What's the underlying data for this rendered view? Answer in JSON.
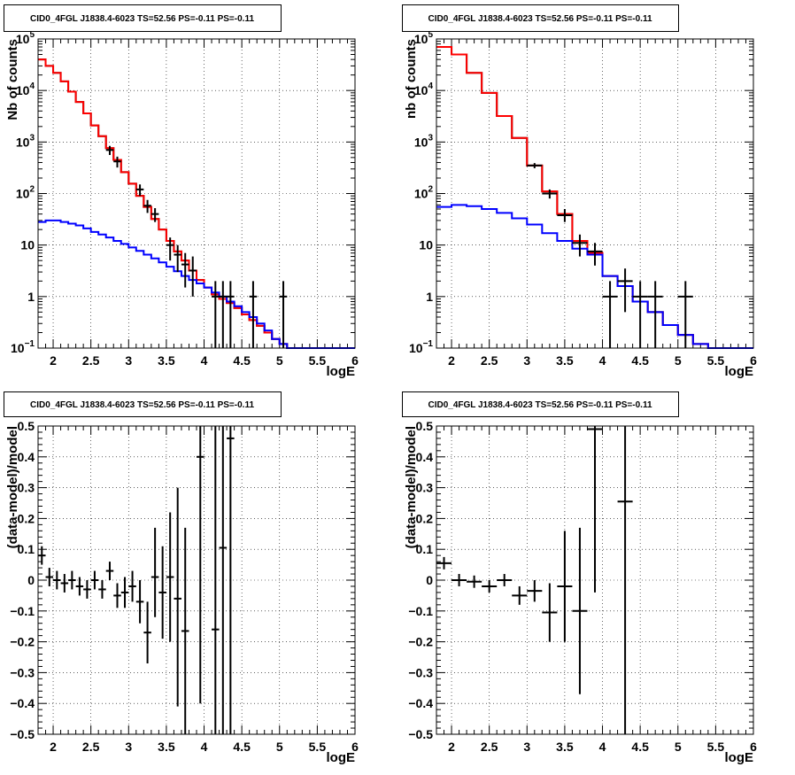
{
  "chart_data": [
    {
      "type": "histogram",
      "title": "CID0_4FGL J1838.4-6023 TS=52.56 PS=-0.11 PS=-0.11",
      "xlabel": "logE",
      "ylabel": "Nb of counts",
      "xlim": [
        1.8,
        6.0
      ],
      "ylim": [
        0.1,
        100000
      ],
      "ylog": true,
      "grid": true,
      "x_ticks": [
        2,
        2.5,
        3,
        3.5,
        4,
        4.5,
        5,
        5.5,
        6
      ],
      "y_ticks": [
        {
          "v": 0.1,
          "m": "10",
          "e": "−1"
        },
        {
          "v": 1,
          "m": "1",
          "e": ""
        },
        {
          "v": 10,
          "m": "10",
          "e": ""
        },
        {
          "v": 100,
          "m": "10",
          "e": "2"
        },
        {
          "v": 1000,
          "m": "10",
          "e": "3"
        },
        {
          "v": 10000,
          "m": "10",
          "e": "4"
        },
        {
          "v": 100000,
          "m": "10",
          "e": "5"
        }
      ],
      "bin_width": 0.1,
      "series": [
        {
          "color": "#000000",
          "kind": "step",
          "x": [
            1.8,
            1.9,
            2.0,
            2.1,
            2.2,
            2.3,
            2.4,
            2.5,
            2.6,
            2.7,
            2.8,
            2.9,
            3.0,
            3.1,
            3.2,
            3.3,
            3.4,
            3.5,
            3.6,
            3.7,
            3.8,
            3.9,
            4.0,
            4.1,
            4.2,
            4.3,
            4.4,
            4.5,
            4.6,
            4.7,
            4.8,
            4.9,
            5.0,
            5.1,
            5.2,
            5.3,
            5.4,
            5.5,
            5.6,
            5.7,
            5.8,
            5.9
          ],
          "y": [
            40000,
            30000,
            22000,
            15000,
            9500,
            6000,
            3600,
            2100,
            1300,
            760,
            450,
            260,
            155,
            90,
            55,
            32,
            20,
            12,
            7.5,
            5,
            3.2,
            2.1,
            1.5,
            1.1,
            0.9,
            0.75,
            0.6,
            0.45,
            0.35,
            0.27,
            0.2,
            0.15,
            0.12,
            0.1,
            0.1,
            0.1,
            0.1,
            0.1,
            0.1,
            0.1,
            0.1,
            0.1
          ]
        },
        {
          "color": "#ff0000",
          "kind": "step",
          "x": [
            1.8,
            1.9,
            2.0,
            2.1,
            2.2,
            2.3,
            2.4,
            2.5,
            2.6,
            2.7,
            2.8,
            2.9,
            3.0,
            3.1,
            3.2,
            3.3,
            3.4,
            3.5,
            3.6,
            3.7,
            3.8,
            3.9,
            4.0,
            4.1,
            4.2,
            4.3,
            4.4,
            4.5,
            4.6,
            4.7,
            4.8,
            4.9,
            5.0,
            5.1,
            5.2,
            5.3,
            5.4,
            5.5,
            5.6,
            5.7,
            5.8,
            5.9
          ],
          "y": [
            40000,
            30000,
            22000,
            15000,
            9500,
            6000,
            3600,
            2100,
            1300,
            760,
            450,
            260,
            155,
            90,
            55,
            32,
            20,
            12,
            7.5,
            5,
            3.2,
            2.1,
            1.5,
            1.1,
            0.9,
            0.75,
            0.6,
            0.45,
            0.35,
            0.27,
            0.2,
            0.15,
            0.12,
            0.1,
            0.1,
            0.1,
            0.1,
            0.1,
            0.1,
            0.1,
            0.1,
            0.1
          ]
        },
        {
          "color": "#0000ff",
          "kind": "step",
          "x": [
            1.8,
            1.9,
            2.0,
            2.1,
            2.2,
            2.3,
            2.4,
            2.5,
            2.6,
            2.7,
            2.8,
            2.9,
            3.0,
            3.1,
            3.2,
            3.3,
            3.4,
            3.5,
            3.6,
            3.7,
            3.8,
            3.9,
            4.0,
            4.1,
            4.2,
            4.3,
            4.4,
            4.5,
            4.6,
            4.7,
            4.8,
            4.9,
            5.0,
            5.1,
            5.2,
            5.3,
            5.4,
            5.5,
            5.6,
            5.7,
            5.8,
            5.9
          ],
          "y": [
            28,
            30,
            30,
            28,
            26,
            24,
            21,
            18,
            16,
            14,
            12,
            10.5,
            9,
            7.7,
            6.5,
            5.5,
            4.6,
            3.8,
            3.1,
            2.5,
            2.1,
            1.8,
            1.5,
            1.2,
            1.0,
            0.8,
            0.65,
            0.5,
            0.4,
            0.3,
            0.22,
            0.15,
            0.12,
            0.1,
            0.1,
            0.1,
            0.1,
            0.1,
            0.1,
            0.1,
            0.1,
            0.1
          ]
        },
        {
          "color": "#000000",
          "kind": "points",
          "x": [
            2.75,
            2.85,
            3.15,
            3.25,
            3.35,
            3.55,
            3.65,
            3.75,
            3.85,
            4.15,
            4.25,
            4.35,
            4.65,
            5.05
          ],
          "y": [
            700,
            420,
            120,
            58,
            40,
            10,
            6.5,
            4.2,
            3.2,
            1,
            1,
            1,
            1,
            1
          ],
          "ylo": [
            560,
            320,
            90,
            42,
            28,
            5,
            3,
            1.5,
            1,
            0,
            0,
            0,
            0,
            0
          ],
          "yhi": [
            840,
            520,
            150,
            75,
            52,
            14,
            10,
            7,
            6,
            2,
            2,
            2,
            2,
            2
          ]
        }
      ]
    },
    {
      "type": "histogram",
      "title": "CID0_4FGL J1838.4-6023 TS=52.56 PS=-0.11 PS=-0.11",
      "xlabel": "logE",
      "ylabel": "nb of counts",
      "xlim": [
        1.8,
        6.0
      ],
      "ylim": [
        0.1,
        100000
      ],
      "ylog": true,
      "grid": true,
      "x_ticks": [
        2,
        2.5,
        3,
        3.5,
        4,
        4.5,
        5,
        5.5,
        6
      ],
      "y_ticks": [
        {
          "v": 0.1,
          "m": "10",
          "e": "−1"
        },
        {
          "v": 1,
          "m": "1",
          "e": ""
        },
        {
          "v": 10,
          "m": "10",
          "e": ""
        },
        {
          "v": 100,
          "m": "10",
          "e": "2"
        },
        {
          "v": 1000,
          "m": "10",
          "e": "3"
        },
        {
          "v": 10000,
          "m": "10",
          "e": "4"
        },
        {
          "v": 100000,
          "m": "10",
          "e": "5"
        }
      ],
      "bin_width": 0.2,
      "series": [
        {
          "color": "#000000",
          "kind": "step",
          "x": [
            1.8,
            2.0,
            2.2,
            2.4,
            2.6,
            2.8,
            3.0,
            3.2,
            3.4,
            3.6,
            3.8,
            4.0,
            4.2,
            4.4,
            4.6,
            4.8,
            5.0,
            5.2,
            5.4,
            5.6,
            5.8
          ],
          "y": [
            70000,
            50000,
            22000,
            9000,
            3200,
            1200,
            350,
            110,
            40,
            12,
            7,
            2.5,
            1.6,
            0.8,
            0.5,
            0.28,
            0.18,
            0.12,
            0.1,
            0.1,
            0.1
          ]
        },
        {
          "color": "#ff0000",
          "kind": "step",
          "x": [
            1.8,
            2.0,
            2.2,
            2.4,
            2.6,
            2.8,
            3.0,
            3.2,
            3.4,
            3.6,
            3.8,
            4.0,
            4.2,
            4.4,
            4.6,
            4.8,
            5.0,
            5.2,
            5.4,
            5.6,
            5.8
          ],
          "y": [
            70000,
            50000,
            22000,
            9000,
            3200,
            1200,
            350,
            110,
            40,
            12,
            7,
            2.5,
            1.6,
            0.8,
            0.5,
            0.28,
            0.18,
            0.12,
            0.1,
            0.1,
            0.1
          ]
        },
        {
          "color": "#0000ff",
          "kind": "step",
          "x": [
            1.8,
            2.0,
            2.2,
            2.4,
            2.6,
            2.8,
            3.0,
            3.2,
            3.4,
            3.6,
            3.8,
            4.0,
            4.2,
            4.4,
            4.6,
            4.8,
            5.0,
            5.2,
            5.4,
            5.6,
            5.8
          ],
          "y": [
            55,
            60,
            57,
            50,
            42,
            33,
            25,
            17,
            12,
            8.5,
            6.5,
            2.5,
            1.6,
            0.8,
            0.5,
            0.28,
            0.18,
            0.12,
            0.1,
            0.1,
            0.1
          ]
        },
        {
          "color": "#000000",
          "kind": "points",
          "x": [
            3.1,
            3.3,
            3.5,
            3.7,
            3.9,
            4.1,
            4.3,
            4.5,
            4.7,
            5.1
          ],
          "y": [
            350,
            100,
            38,
            11,
            7.5,
            1,
            2,
            1,
            1,
            1
          ],
          "ylo": [
            310,
            80,
            28,
            6,
            4,
            0,
            0.5,
            0,
            0,
            0
          ],
          "yhi": [
            390,
            120,
            50,
            16,
            11,
            2,
            3.5,
            2,
            2,
            2
          ]
        }
      ]
    },
    {
      "type": "scatter",
      "title": "CID0_4FGL J1838.4-6023 TS=52.56 PS=-0.11 PS=-0.11",
      "xlabel": "logE",
      "ylabel": "(data-model)/model",
      "xlim": [
        1.8,
        6.0
      ],
      "ylim": [
        -0.5,
        0.5
      ],
      "ylog": false,
      "grid": true,
      "x_ticks": [
        2,
        2.5,
        3,
        3.5,
        4,
        4.5,
        5,
        5.5,
        6
      ],
      "y_ticks": [
        {
          "v": -0.5,
          "m": "−0.5",
          "e": ""
        },
        {
          "v": -0.4,
          "m": "−0.4",
          "e": ""
        },
        {
          "v": -0.3,
          "m": "−0.3",
          "e": ""
        },
        {
          "v": -0.2,
          "m": "−0.2",
          "e": ""
        },
        {
          "v": -0.1,
          "m": "−0.1",
          "e": ""
        },
        {
          "v": 0,
          "m": "0",
          "e": ""
        },
        {
          "v": 0.1,
          "m": "0.1",
          "e": ""
        },
        {
          "v": 0.2,
          "m": "0.2",
          "e": ""
        },
        {
          "v": 0.3,
          "m": "0.3",
          "e": ""
        },
        {
          "v": 0.4,
          "m": "0.4",
          "e": ""
        },
        {
          "v": 0.5,
          "m": "0.5",
          "e": ""
        }
      ],
      "bin_width": 0.1,
      "series": [
        {
          "color": "#000000",
          "kind": "points",
          "x": [
            1.85,
            1.95,
            2.05,
            2.15,
            2.25,
            2.35,
            2.45,
            2.55,
            2.65,
            2.75,
            2.85,
            2.95,
            3.05,
            3.15,
            3.25,
            3.35,
            3.45,
            3.55,
            3.65,
            3.75,
            3.95,
            4.15,
            4.25,
            4.35
          ],
          "y": [
            0.08,
            0.01,
            0,
            -0.01,
            0,
            -0.02,
            -0.03,
            0,
            -0.03,
            0.03,
            -0.05,
            -0.04,
            -0.02,
            -0.07,
            -0.17,
            0.01,
            -0.04,
            0.01,
            -0.06,
            -0.165,
            0.4,
            -0.16,
            0.105,
            0.46
          ],
          "ylo": [
            0.05,
            -0.02,
            -0.03,
            -0.04,
            -0.03,
            -0.05,
            -0.06,
            -0.03,
            -0.06,
            0,
            -0.09,
            -0.09,
            -0.07,
            -0.14,
            -0.27,
            -0.12,
            -0.19,
            -0.2,
            -0.41,
            -0.5,
            -0.4,
            -0.5,
            -0.5,
            -0.5
          ],
          "yhi": [
            0.11,
            0.04,
            0.03,
            0.02,
            0.03,
            0.01,
            0,
            0.03,
            0,
            0.06,
            -0.01,
            0.01,
            0.03,
            0,
            -0.07,
            0.17,
            0.11,
            0.22,
            0.3,
            0.17,
            0.5,
            0.5,
            0.5,
            0.5
          ]
        }
      ]
    },
    {
      "type": "scatter",
      "title": "CID0_4FGL J1838.4-6023 TS=52.56 PS=-0.11 PS=-0.11",
      "xlabel": "logE",
      "ylabel": "(data-model)/model",
      "xlim": [
        1.8,
        6.0
      ],
      "ylim": [
        -0.5,
        0.5
      ],
      "ylog": false,
      "grid": true,
      "x_ticks": [
        2,
        2.5,
        3,
        3.5,
        4,
        4.5,
        5,
        5.5,
        6
      ],
      "y_ticks": [
        {
          "v": -0.5,
          "m": "−0.5",
          "e": ""
        },
        {
          "v": -0.4,
          "m": "−0.4",
          "e": ""
        },
        {
          "v": -0.3,
          "m": "−0.3",
          "e": ""
        },
        {
          "v": -0.2,
          "m": "−0.2",
          "e": ""
        },
        {
          "v": -0.1,
          "m": "−0.1",
          "e": ""
        },
        {
          "v": 0,
          "m": "0",
          "e": ""
        },
        {
          "v": 0.1,
          "m": "0.1",
          "e": ""
        },
        {
          "v": 0.2,
          "m": "0.2",
          "e": ""
        },
        {
          "v": 0.3,
          "m": "0.3",
          "e": ""
        },
        {
          "v": 0.4,
          "m": "0.4",
          "e": ""
        },
        {
          "v": 0.5,
          "m": "0.5",
          "e": ""
        }
      ],
      "bin_width": 0.2,
      "series": [
        {
          "color": "#000000",
          "kind": "points",
          "x": [
            1.9,
            2.1,
            2.3,
            2.5,
            2.7,
            2.9,
            3.1,
            3.3,
            3.5,
            3.7,
            3.9,
            4.3
          ],
          "y": [
            0.055,
            0,
            -0.005,
            -0.02,
            0,
            -0.05,
            -0.035,
            -0.105,
            -0.02,
            -0.1,
            0.49,
            0.255
          ],
          "ylo": [
            0.035,
            -0.02,
            -0.025,
            -0.04,
            -0.02,
            -0.08,
            -0.07,
            -0.2,
            -0.2,
            -0.37,
            -0.04,
            -0.5
          ],
          "yhi": [
            0.075,
            0.02,
            0.015,
            0,
            0.02,
            -0.02,
            0,
            -0.01,
            0.16,
            0.17,
            0.5,
            0.5
          ]
        }
      ]
    }
  ]
}
